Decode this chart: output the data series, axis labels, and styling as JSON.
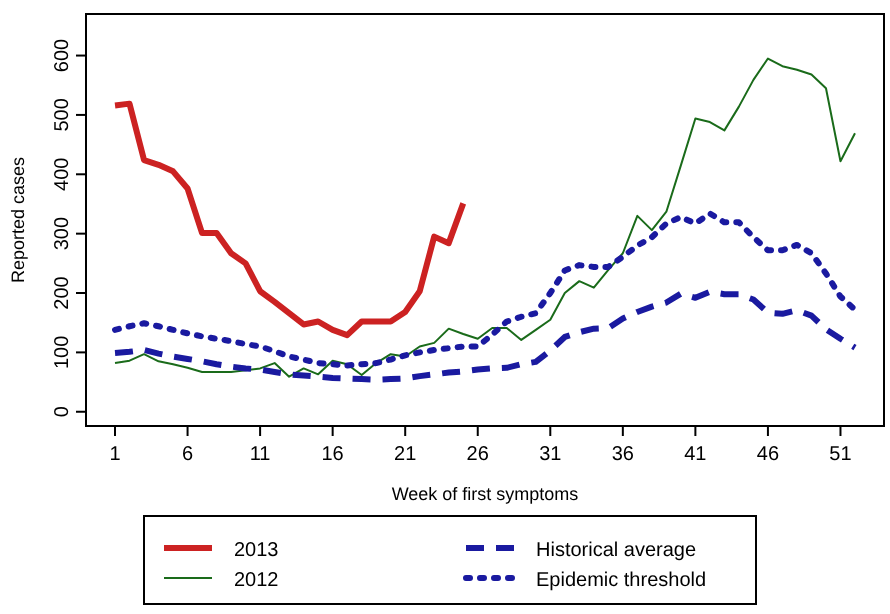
{
  "chart_data": {
    "type": "line",
    "xlabel": "Week of first symptoms",
    "ylabel": "Reported cases",
    "x": [
      1,
      2,
      3,
      4,
      5,
      6,
      7,
      8,
      9,
      10,
      11,
      12,
      13,
      14,
      15,
      16,
      17,
      18,
      19,
      20,
      21,
      22,
      23,
      24,
      25,
      26,
      27,
      28,
      29,
      30,
      31,
      32,
      33,
      34,
      35,
      36,
      37,
      38,
      39,
      40,
      41,
      42,
      43,
      44,
      45,
      46,
      47,
      48,
      49,
      50,
      51,
      52
    ],
    "xlim": [
      -1,
      54
    ],
    "xticks": [
      1,
      6,
      11,
      16,
      21,
      26,
      31,
      36,
      41,
      46,
      51
    ],
    "ylim": [
      -24,
      670
    ],
    "yticks": [
      0,
      100,
      200,
      300,
      400,
      500,
      600
    ],
    "grid": false,
    "legend": "bottom",
    "marker": "none",
    "series": [
      {
        "name": "2013",
        "color": "#cc2222",
        "line_style": "solid",
        "values": [
          516,
          519,
          424,
          416,
          405,
          376,
          301,
          301,
          267,
          250,
          203,
          185,
          166,
          147,
          152,
          138,
          129,
          152,
          152,
          152,
          168,
          203,
          295,
          284,
          351,
          null,
          null,
          null,
          null,
          null,
          null,
          null,
          null,
          null,
          null,
          null,
          null,
          null,
          null,
          null,
          null,
          null,
          null,
          null,
          null,
          null,
          null,
          null,
          null,
          null,
          null,
          null
        ]
      },
      {
        "name": "2012",
        "color": "#1a6b1a",
        "line_style": "solid",
        "values": [
          82,
          86,
          97,
          85,
          80,
          74,
          67,
          67,
          67,
          70,
          73,
          82,
          59,
          73,
          63,
          86,
          80,
          62,
          82,
          97,
          93,
          110,
          116,
          140,
          131,
          123,
          141,
          141,
          121,
          138,
          155,
          200,
          220,
          209,
          239,
          267,
          330,
          306,
          337,
          415,
          494,
          488,
          474,
          514,
          559,
          595,
          582,
          576,
          568,
          545,
          422,
          469
        ]
      },
      {
        "name": "Historical average",
        "color": "#1a1aa0",
        "line_style": "dashed",
        "values": [
          99,
          101,
          104,
          98,
          93,
          89,
          85,
          80,
          76,
          73,
          71,
          67,
          63,
          61,
          59,
          57,
          56,
          55,
          54,
          55,
          56,
          60,
          63,
          66,
          68,
          71,
          73,
          74,
          80,
          84,
          103,
          126,
          134,
          140,
          141,
          157,
          168,
          177,
          184,
          199,
          192,
          202,
          198,
          198,
          189,
          167,
          165,
          171,
          162,
          139,
          123,
          108
        ]
      },
      {
        "name": "Epidemic threshold",
        "color": "#1a1aa0",
        "line_style": "dotted",
        "values": [
          138,
          144,
          149,
          144,
          138,
          132,
          127,
          123,
          119,
          114,
          110,
          102,
          93,
          88,
          82,
          80,
          78,
          80,
          82,
          88,
          95,
          100,
          104,
          107,
          110,
          110,
          130,
          152,
          160,
          166,
          200,
          238,
          247,
          244,
          244,
          261,
          280,
          294,
          317,
          328,
          317,
          334,
          319,
          319,
          294,
          272,
          272,
          281,
          267,
          233,
          194,
          172
        ]
      }
    ]
  }
}
